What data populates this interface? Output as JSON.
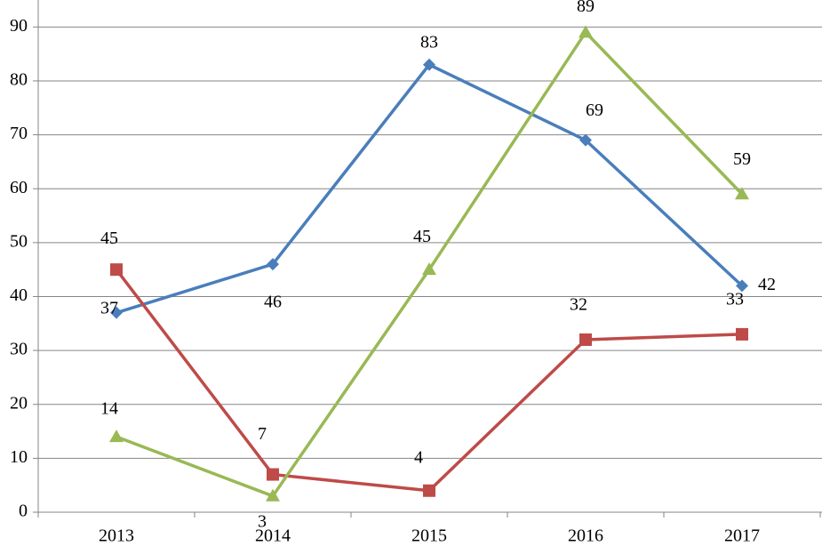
{
  "chart_data": {
    "type": "line",
    "categories": [
      "2013",
      "2014",
      "2015",
      "2016",
      "2017"
    ],
    "series": [
      {
        "color": "#4a7ebb",
        "marker": "diamond",
        "values": [
          37,
          46,
          83,
          69,
          42
        ]
      },
      {
        "color": "#be4b48",
        "marker": "square",
        "values": [
          45,
          7,
          4,
          32,
          33
        ]
      },
      {
        "color": "#98b954",
        "marker": "triangle",
        "values": [
          14,
          3,
          45,
          89,
          59
        ]
      }
    ],
    "ylim": [
      0,
      95
    ],
    "yticks": [
      0,
      10,
      20,
      30,
      40,
      50,
      60,
      70,
      80,
      90
    ],
    "grid": true
  }
}
